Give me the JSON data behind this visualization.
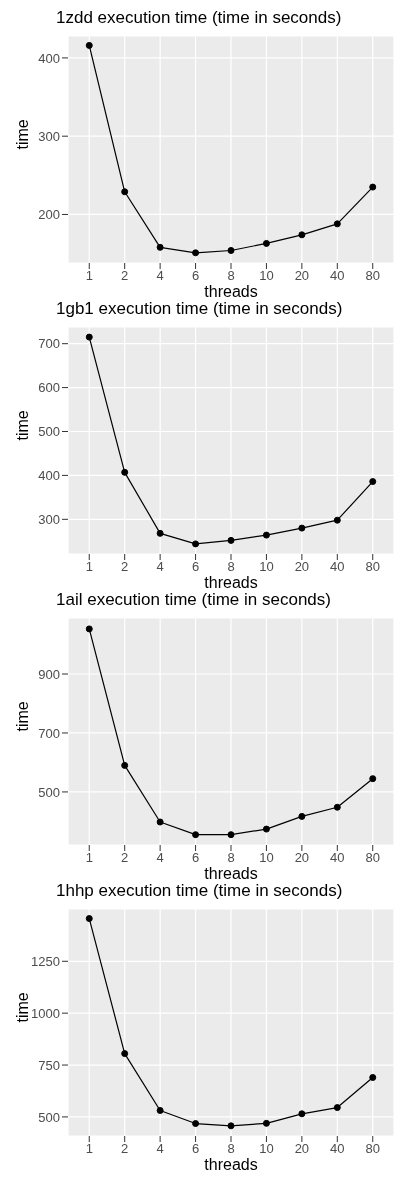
{
  "chart_data": [
    {
      "type": "line",
      "title": "1zdd execution time (time in seconds)",
      "xlabel": "threads",
      "ylabel": "time",
      "categories": [
        "1",
        "2",
        "4",
        "6",
        "8",
        "10",
        "20",
        "40",
        "80"
      ],
      "values": [
        416,
        229,
        158,
        151,
        154,
        163,
        174,
        188,
        235
      ],
      "color": "#000000",
      "ylim": [
        138,
        428
      ],
      "yticks": [
        200,
        300,
        400
      ],
      "grid": true,
      "marker": "circle"
    },
    {
      "type": "line",
      "title": "1gb1 execution time (time in seconds)",
      "xlabel": "threads",
      "ylabel": "time",
      "categories": [
        "1",
        "2",
        "4",
        "6",
        "8",
        "10",
        "20",
        "40",
        "80"
      ],
      "values": [
        715,
        407,
        268,
        244,
        252,
        264,
        280,
        298,
        386
      ],
      "color": "#000000",
      "ylim": [
        221,
        738
      ],
      "yticks": [
        300,
        400,
        500,
        600,
        700
      ],
      "grid": true,
      "marker": "circle"
    },
    {
      "type": "line",
      "title": "1ail execution time (time in seconds)",
      "xlabel": "threads",
      "ylabel": "time",
      "categories": [
        "1",
        "2",
        "4",
        "6",
        "8",
        "10",
        "20",
        "40",
        "80"
      ],
      "values": [
        1053,
        590,
        398,
        355,
        355,
        374,
        417,
        448,
        545
      ],
      "color": "#000000",
      "ylim": [
        320,
        1090
      ],
      "yticks": [
        500,
        700,
        900
      ],
      "grid": true,
      "marker": "circle"
    },
    {
      "type": "line",
      "title": "1hhp execution time (time in seconds)",
      "xlabel": "threads",
      "ylabel": "time",
      "categories": [
        "1",
        "2",
        "4",
        "6",
        "8",
        "10",
        "20",
        "40",
        "80"
      ],
      "values": [
        1456,
        805,
        531,
        468,
        457,
        469,
        515,
        545,
        690
      ],
      "color": "#000000",
      "ylim": [
        408,
        1502
      ],
      "yticks": [
        500,
        750,
        1000,
        1250
      ],
      "grid": true,
      "marker": "circle"
    }
  ]
}
